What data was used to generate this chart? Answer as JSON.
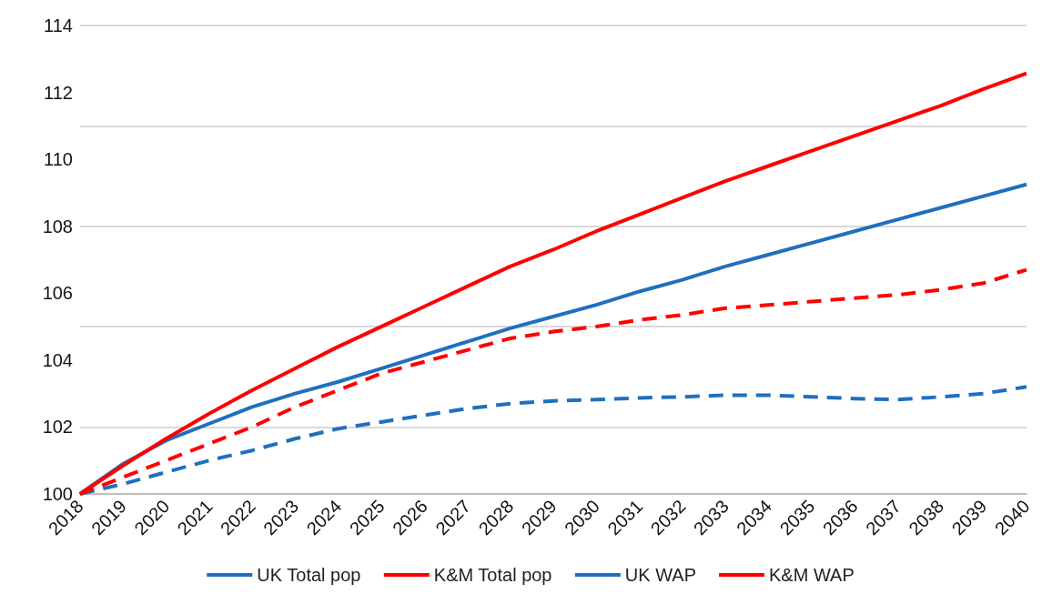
{
  "chart_data": {
    "type": "line",
    "categories": [
      "2018",
      "2019",
      "2020",
      "2021",
      "2022",
      "2023",
      "2024",
      "2025",
      "2026",
      "2027",
      "2028",
      "2029",
      "2030",
      "2031",
      "2032",
      "2033",
      "2034",
      "2035",
      "2036",
      "2037",
      "2038",
      "2039",
      "2040"
    ],
    "series": [
      {
        "name": "UK Total pop",
        "color": "#1f6fc0",
        "line_style": "solid",
        "values": [
          100,
          100.9,
          101.6,
          102.1,
          102.6,
          103.0,
          103.35,
          103.75,
          104.15,
          104.55,
          104.95,
          105.3,
          105.65,
          106.05,
          106.4,
          106.8,
          107.15,
          107.5,
          107.85,
          108.2,
          108.55,
          108.9,
          109.25
        ]
      },
      {
        "name": "K&M Total pop",
        "color": "#ff0000",
        "line_style": "solid",
        "values": [
          100,
          100.85,
          101.65,
          102.4,
          103.1,
          103.75,
          104.4,
          105.0,
          105.6,
          106.2,
          106.8,
          107.3,
          107.85,
          108.35,
          108.85,
          109.35,
          109.8,
          110.25,
          110.7,
          111.15,
          111.6,
          112.1,
          112.57
        ]
      },
      {
        "name": "UK WAP",
        "color": "#1f6fc0",
        "line_style": "dashed",
        "values": [
          100,
          100.3,
          100.65,
          101.0,
          101.3,
          101.65,
          101.95,
          102.15,
          102.35,
          102.55,
          102.7,
          102.78,
          102.82,
          102.87,
          102.9,
          102.95,
          102.95,
          102.9,
          102.85,
          102.82,
          102.9,
          103.0,
          103.2
        ]
      },
      {
        "name": "K&M WAP",
        "color": "#ff0000",
        "line_style": "dashed",
        "values": [
          100,
          100.5,
          101.0,
          101.5,
          102.0,
          102.6,
          103.1,
          103.6,
          103.95,
          104.3,
          104.65,
          104.85,
          105.0,
          105.2,
          105.35,
          105.55,
          105.65,
          105.75,
          105.85,
          105.95,
          106.1,
          106.3,
          106.7
        ]
      }
    ],
    "ylim": [
      100,
      114
    ],
    "yticks": [
      100,
      102,
      104,
      106,
      108,
      110,
      112,
      114
    ],
    "grid": "y",
    "legend": "bottom",
    "marker": "none"
  }
}
